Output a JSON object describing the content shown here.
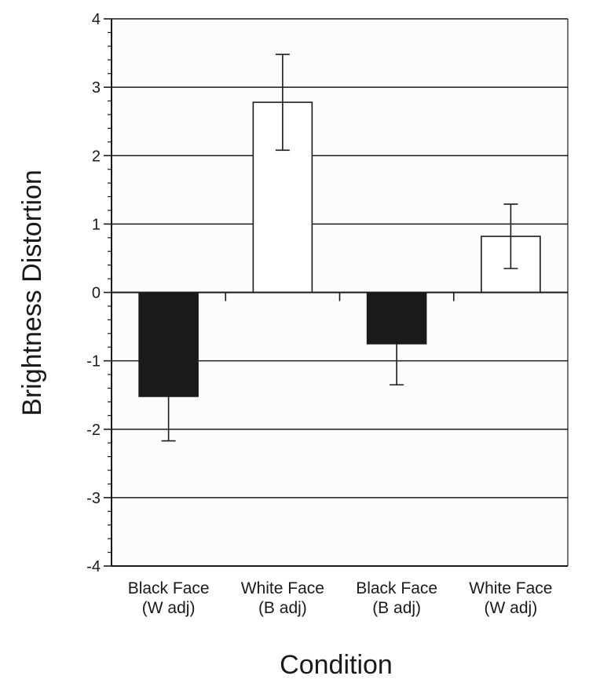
{
  "chart_data": {
    "type": "bar",
    "title": "",
    "xlabel": "Condition",
    "ylabel": "Brightness Distortion",
    "ylim": [
      -4,
      4
    ],
    "yticks": [
      -4,
      -3,
      -2,
      -1,
      0,
      1,
      2,
      3,
      4
    ],
    "ytick_labels": [
      "-4",
      "-3",
      "-2",
      "-1",
      "0",
      "1",
      "2",
      "3",
      "4"
    ],
    "grid": true,
    "categories": [
      [
        "Black Face",
        "(W adj)"
      ],
      [
        "White Face",
        "(B adj)"
      ],
      [
        "Black Face",
        "(B adj)"
      ],
      [
        "White Face",
        "(W adj)"
      ]
    ],
    "values": [
      -1.52,
      2.78,
      -0.75,
      0.82
    ],
    "errors": [
      0.65,
      0.7,
      0.6,
      0.47
    ],
    "bar_colors": [
      "#1a1a1a",
      "#ffffff",
      "#1a1a1a",
      "#ffffff"
    ],
    "axis_color": "#1a1a1a"
  }
}
